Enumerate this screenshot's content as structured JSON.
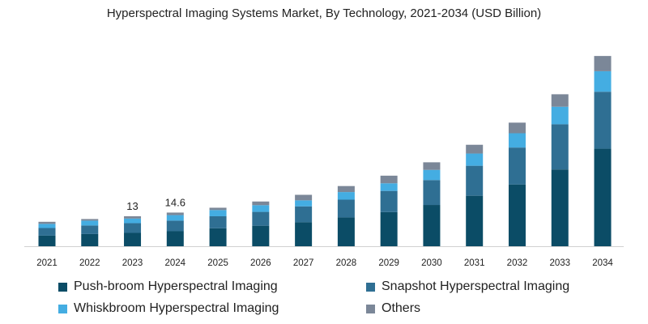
{
  "chart_data": {
    "type": "bar",
    "stacked": true,
    "title": "Hyperspectral Imaging Systems Market, By Technology, 2021-2034 (USD Billion)",
    "xlabel": "",
    "ylabel": "",
    "ylim": [
      0,
      85
    ],
    "grid": false,
    "legend_position": "bottom",
    "categories": [
      "2021",
      "2022",
      "2023",
      "2024",
      "2025",
      "2026",
      "2027",
      "2028",
      "2029",
      "2030",
      "2031",
      "2032",
      "2033",
      "2034"
    ],
    "series": [
      {
        "name": "Push-broom Hyperspectral Imaging",
        "color": "#0b4c66",
        "values": [
          4.6,
          5.3,
          5.8,
          6.5,
          7.8,
          8.9,
          10.4,
          12.5,
          14.8,
          17.9,
          21.9,
          26.8,
          33.3,
          42.3
        ]
      },
      {
        "name": "Snapshot Hyperspectral Imaging",
        "color": "#2f6f93",
        "values": [
          3.3,
          3.7,
          4.2,
          4.6,
          5.2,
          6.0,
          6.9,
          7.7,
          9.2,
          10.8,
          13.0,
          16.0,
          19.6,
          24.7
        ]
      },
      {
        "name": "Whiskbroom Hyperspectral Imaging",
        "color": "#44ade2",
        "values": [
          1.8,
          2.1,
          2.0,
          2.4,
          2.7,
          2.9,
          2.6,
          3.3,
          3.3,
          4.4,
          5.3,
          6.2,
          7.6,
          8.9
        ]
      },
      {
        "name": "Others",
        "color": "#7b8798",
        "values": [
          0.9,
          0.7,
          1.0,
          1.1,
          1.0,
          1.6,
          2.4,
          2.6,
          3.3,
          3.3,
          3.8,
          4.6,
          5.4,
          6.6
        ]
      }
    ],
    "data_labels": [
      {
        "category": "2023",
        "text": "13"
      },
      {
        "category": "2024",
        "text": "14.6"
      }
    ]
  }
}
